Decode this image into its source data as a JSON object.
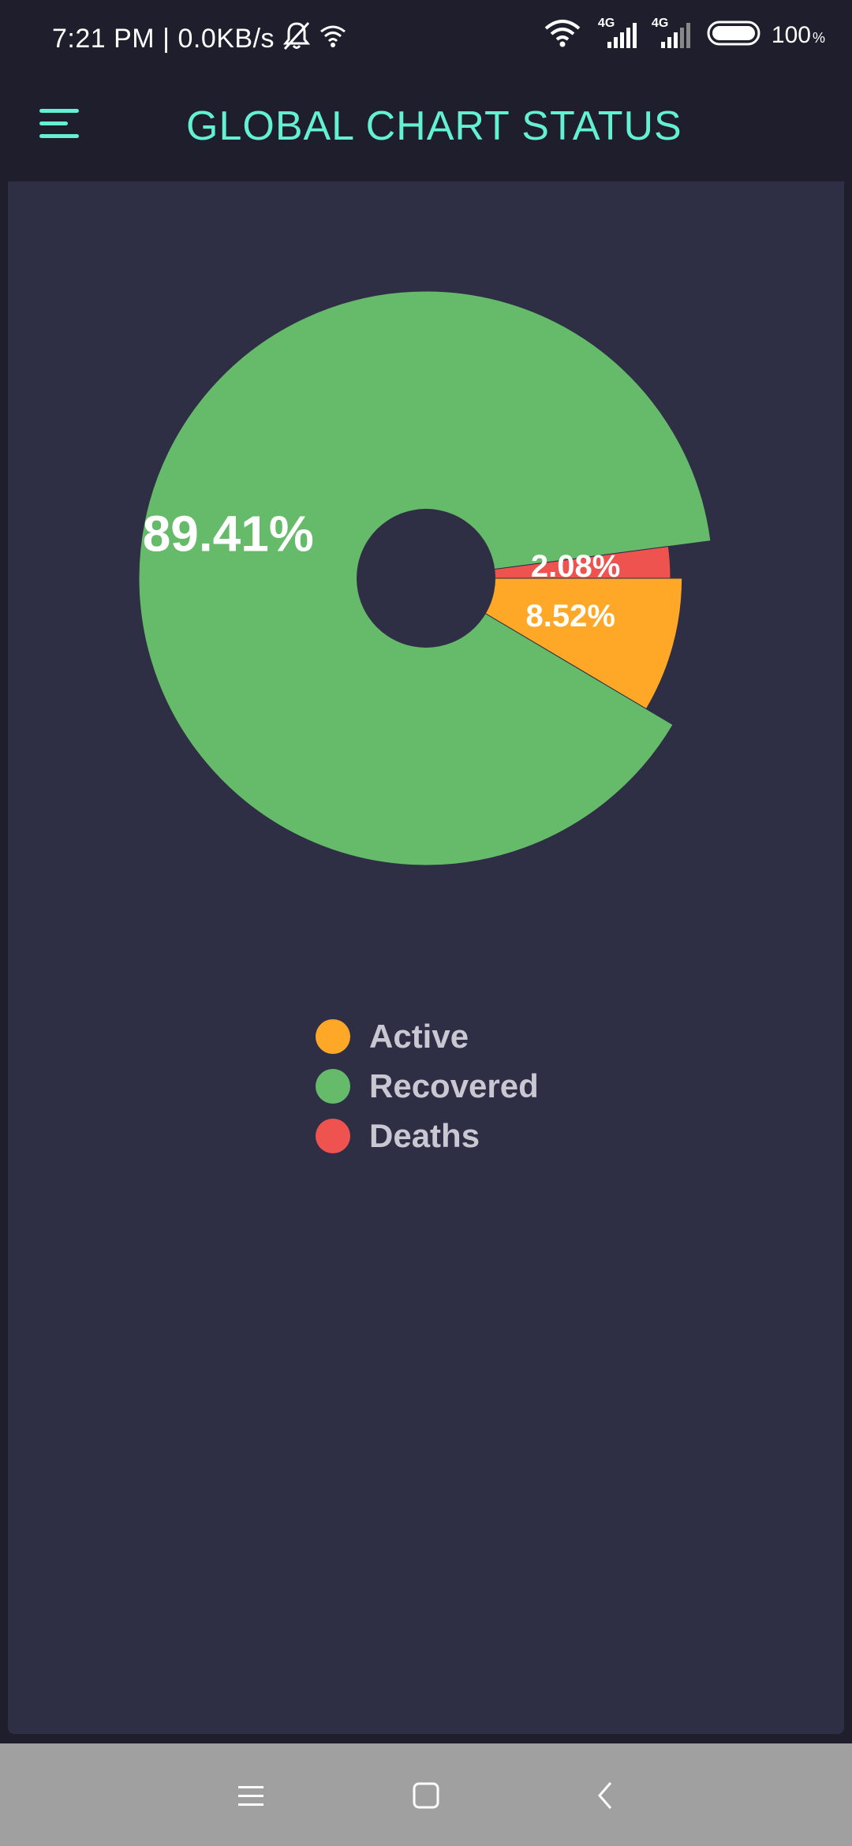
{
  "status_bar": {
    "time": "7:21 PM",
    "separator": "|",
    "net_speed": "0.0KB/s",
    "network_1": "4G",
    "network_2": "4G",
    "battery": "100",
    "battery_unit": "%"
  },
  "app_bar": {
    "title": "GLOBAL CHART STATUS",
    "title_color": "#64f0d2",
    "menu_icon": "hamburger-menu-icon"
  },
  "chart_data": {
    "type": "pie",
    "style": "rose-with-center-hole",
    "slices": [
      {
        "name": "Active",
        "value": 8.52,
        "label": "8.52%",
        "color": "#ffa726"
      },
      {
        "name": "Recovered",
        "value": 89.41,
        "label": "89.41%",
        "color": "#66bb6a"
      },
      {
        "name": "Deaths",
        "value": 2.08,
        "label": "2.08%",
        "color": "#ef5350"
      }
    ],
    "legend_position": "bottom-center"
  },
  "legend": {
    "items": [
      {
        "label": "Active",
        "color": "#ffa726"
      },
      {
        "label": "Recovered",
        "color": "#66bb6a"
      },
      {
        "label": "Deaths",
        "color": "#ef5350"
      }
    ]
  },
  "nav_bar": {
    "icons": [
      "recent-apps-icon",
      "home-icon",
      "back-icon"
    ]
  }
}
